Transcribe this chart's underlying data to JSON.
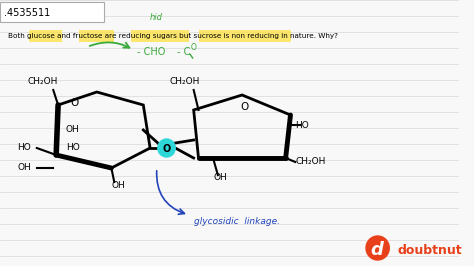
{
  "bg_color": "#f8f8f8",
  "lines_color": "#d8d8d8",
  "title_number": ".4535511",
  "text_line": "Both glucose and fructose are reducing sugars but sucrose is non reducing in nature. Why?",
  "annotation_hid": "hid",
  "glycosidic_text": "glycosidic  linkage.",
  "doubtnut_color": "#e8401a",
  "yellow_highlight": "#ffe033",
  "teal_color": "#2ed8d8",
  "green_color": "#3aaa3a",
  "blue_color": "#2244bb",
  "black": "#111111",
  "white": "#ffffff",
  "hl_glucose": [
    30,
    30,
    34,
    12
  ],
  "hl_fructose": [
    82,
    30,
    36,
    12
  ],
  "hl_reducing_sugars": [
    135,
    30,
    60,
    12
  ],
  "hl_sucrose": [
    206,
    30,
    95,
    12
  ]
}
